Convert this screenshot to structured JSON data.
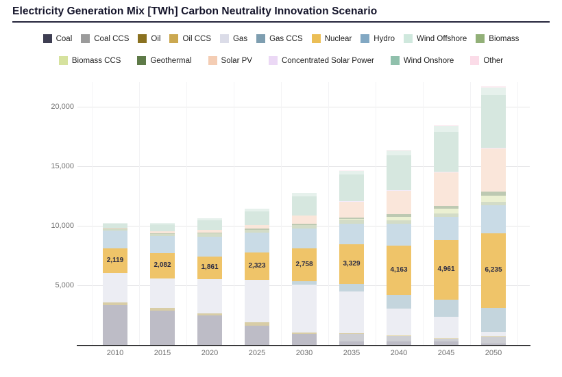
{
  "header": {
    "title": "Electricity Generation Mix [TWh] Carbon Neutrality Innovation Scenario"
  },
  "legend": {
    "rows": [
      [
        "Coal",
        "Coal CCS",
        "Oil",
        "Oil CCS",
        "Gas",
        "Gas CCS",
        "Nuclear",
        "Hydro",
        "Wind Offshore",
        "Biomass"
      ],
      [
        "Biomass CCS",
        "Geothermal",
        "Solar PV",
        "Concentrated Solar Power",
        "Wind Onshore",
        "Other"
      ]
    ]
  },
  "chart_data": {
    "type": "bar",
    "stacked": true,
    "unit": "TWh",
    "title": "Electricity Generation Mix [TWh] Carbon Neutrality Innovation Scenario",
    "categories": [
      "2010",
      "2015",
      "2020",
      "2025",
      "2030",
      "2035",
      "2040",
      "2045",
      "2050"
    ],
    "series": [
      {
        "name": "Coal",
        "legend_color": "#3e3e52",
        "bar_color": "#bdbcc6",
        "values": [
          3340,
          2850,
          2450,
          1600,
          900,
          260,
          300,
          260,
          100
        ]
      },
      {
        "name": "Coal CCS",
        "legend_color": "#9b9b9b",
        "bar_color": "#cdced3",
        "values": [
          0,
          0,
          0,
          0,
          0,
          650,
          460,
          290,
          580
        ]
      },
      {
        "name": "Oil",
        "legend_color": "#8a7120",
        "bar_color": "#d8cda6",
        "values": [
          250,
          230,
          190,
          290,
          150,
          60,
          30,
          0,
          0
        ]
      },
      {
        "name": "Oil CCS",
        "legend_color": "#cba850",
        "bar_color": "#e7dcb6",
        "values": [
          0,
          0,
          0,
          0,
          0,
          0,
          30,
          30,
          40
        ]
      },
      {
        "name": "Gas",
        "legend_color": "#dbdce8",
        "bar_color": "#ecedf3",
        "values": [
          2420,
          2520,
          2900,
          3560,
          4000,
          3500,
          2200,
          1800,
          400
        ]
      },
      {
        "name": "Gas CCS",
        "legend_color": "#7e9eb0",
        "bar_color": "#c4d5dd",
        "values": [
          0,
          0,
          0,
          0,
          320,
          670,
          1150,
          1440,
          2000
        ]
      },
      {
        "name": "Nuclear",
        "legend_color": "#ebbe56",
        "bar_color": "#efc469",
        "values": [
          2119,
          2082,
          1861,
          2323,
          2758,
          3329,
          4163,
          4961,
          6235
        ]
      },
      {
        "name": "Hydro",
        "legend_color": "#82a8c3",
        "bar_color": "#c9dbe6",
        "values": [
          1450,
          1450,
          1700,
          1630,
          1650,
          1700,
          1850,
          1950,
          2350
        ]
      },
      {
        "name": "Biomass",
        "legend_color": "#92b078",
        "bar_color": "#d3dcc7",
        "values": [
          150,
          180,
          250,
          280,
          300,
          330,
          300,
          310,
          300
        ]
      },
      {
        "name": "Biomass CCS",
        "legend_color": "#d6e29e",
        "bar_color": "#ebf0d2",
        "values": [
          0,
          0,
          0,
          0,
          0,
          60,
          290,
          380,
          520
        ]
      },
      {
        "name": "Geothermal",
        "legend_color": "#5e7a48",
        "bar_color": "#bdc9b2",
        "values": [
          40,
          50,
          60,
          80,
          100,
          140,
          180,
          230,
          330
        ]
      },
      {
        "name": "Solar PV",
        "legend_color": "#f4cdb4",
        "bar_color": "#fae6da",
        "values": [
          30,
          150,
          250,
          290,
          670,
          1340,
          2010,
          2850,
          3640
        ]
      },
      {
        "name": "Concentrated Solar Power",
        "legend_color": "#ebd8f5",
        "bar_color": "#f4ebf9",
        "values": [
          0,
          0,
          0,
          0,
          0,
          20,
          40,
          60,
          80
        ]
      },
      {
        "name": "Wind Onshore",
        "legend_color": "#90c0ac",
        "bar_color": "#d6e7df",
        "values": [
          370,
          600,
          820,
          1150,
          1630,
          2240,
          2900,
          3300,
          4400
        ]
      },
      {
        "name": "Wind Offshore",
        "legend_color": "#cfe8dd",
        "bar_color": "#e6f1ec",
        "values": [
          60,
          100,
          150,
          250,
          300,
          350,
          420,
          520,
          650
        ]
      },
      {
        "name": "Other",
        "legend_color": "#fbdce8",
        "bar_color": "#fcedf2",
        "values": [
          0,
          0,
          0,
          0,
          0,
          30,
          40,
          60,
          100
        ]
      }
    ],
    "bar_labels": {
      "series": "Nuclear",
      "values": [
        "2,119",
        "2,082",
        "1,861",
        "2,323",
        "2,758",
        "3,329",
        "4,163",
        "4,961",
        "6,235"
      ]
    },
    "y_ticks": [
      {
        "value": 5000,
        "label": "5,000"
      },
      {
        "value": 10000,
        "label": "10,000"
      },
      {
        "value": 15000,
        "label": "15,000"
      },
      {
        "value": 20000,
        "label": "20,000"
      }
    ],
    "ylim": [
      0,
      22100
    ],
    "xlabel": "",
    "ylabel": "",
    "grid": true,
    "legend_position": "top"
  }
}
